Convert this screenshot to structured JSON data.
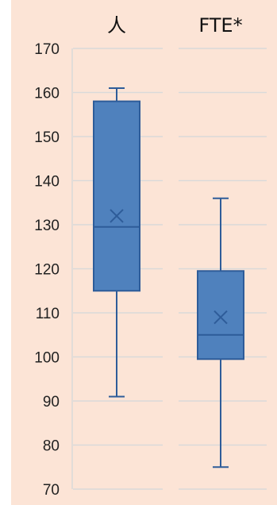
{
  "chart_data": {
    "type": "box",
    "categories": [
      "人",
      "FTE*"
    ],
    "series": [
      {
        "whisker_low": 91,
        "q1": 115,
        "median": 129.5,
        "q3": 158,
        "whisker_high": 161,
        "mean": 132
      },
      {
        "whisker_low": 75,
        "q1": 99.5,
        "median": 105,
        "q3": 119.5,
        "whisker_high": 136,
        "mean": 109
      }
    ],
    "ylim": [
      70,
      170
    ],
    "yticks": [
      70,
      80,
      90,
      100,
      110,
      120,
      130,
      140,
      150,
      160,
      170
    ],
    "grid": true,
    "title": "",
    "xlabel": "",
    "ylabel": ""
  },
  "colors": {
    "box_fill": "#4f81bd",
    "box_stroke": "#2e5c99",
    "grid": "#d9d9d9",
    "background": "#fce4d6"
  }
}
